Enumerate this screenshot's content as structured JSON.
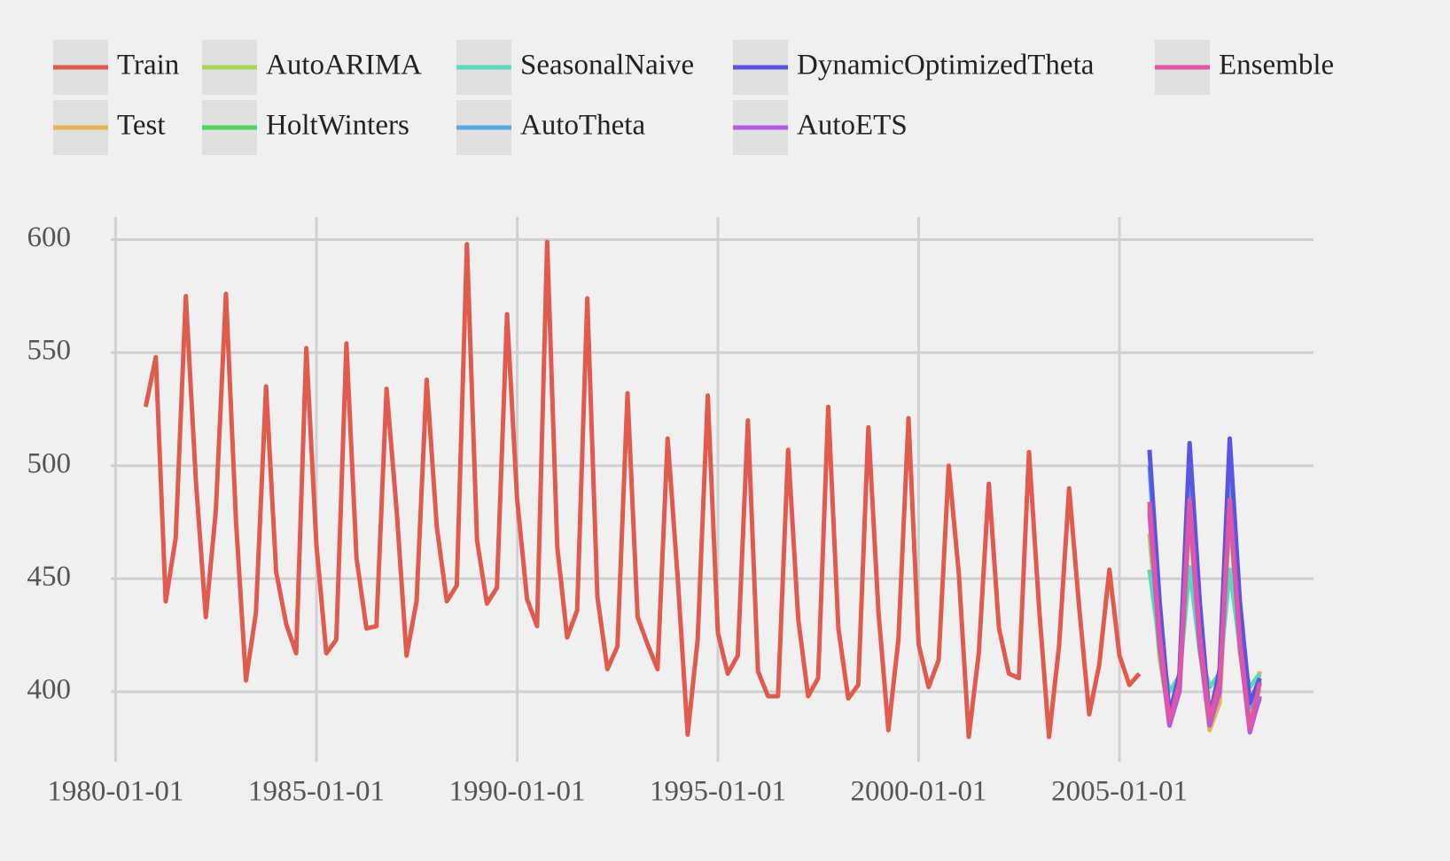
{
  "chart_data": {
    "type": "line",
    "xlim": [
      "1979-05-01",
      "2009-11-01"
    ],
    "ylim": [
      369,
      610
    ],
    "xticks": [
      "1980-01-01",
      "1985-01-01",
      "1990-01-01",
      "1995-01-01",
      "2000-01-01",
      "2005-01-01"
    ],
    "yticks": [
      400,
      450,
      500,
      550,
      600
    ],
    "grid": true,
    "legend": "top",
    "series": [
      {
        "name": "Train",
        "color": "#e05a4f",
        "x": [
          "1980-10-01",
          "1981-01-01",
          "1981-04-01",
          "1981-07-01",
          "1981-10-01",
          "1982-01-01",
          "1982-04-01",
          "1982-07-01",
          "1982-10-01",
          "1983-01-01",
          "1983-04-01",
          "1983-07-01",
          "1983-10-01",
          "1984-01-01",
          "1984-04-01",
          "1984-07-01",
          "1984-10-01",
          "1985-01-01",
          "1985-04-01",
          "1985-07-01",
          "1985-10-01",
          "1986-01-01",
          "1986-04-01",
          "1986-07-01",
          "1986-10-01",
          "1987-01-01",
          "1987-04-01",
          "1987-07-01",
          "1987-10-01",
          "1988-01-01",
          "1988-04-01",
          "1988-07-01",
          "1988-10-01",
          "1989-01-01",
          "1989-04-01",
          "1989-07-01",
          "1989-10-01",
          "1990-01-01",
          "1990-04-01",
          "1990-07-01",
          "1990-10-01",
          "1991-01-01",
          "1991-04-01",
          "1991-07-01",
          "1991-10-01",
          "1992-01-01",
          "1992-04-01",
          "1992-07-01",
          "1992-10-01",
          "1993-01-01",
          "1993-04-01",
          "1993-07-01",
          "1993-10-01",
          "1994-01-01",
          "1994-04-01",
          "1994-07-01",
          "1994-10-01",
          "1995-01-01",
          "1995-04-01",
          "1995-07-01",
          "1995-10-01",
          "1996-01-01",
          "1996-04-01",
          "1996-07-01",
          "1996-10-01",
          "1997-01-01",
          "1997-04-01",
          "1997-07-01",
          "1997-10-01",
          "1998-01-01",
          "1998-04-01",
          "1998-07-01",
          "1998-10-01",
          "1999-01-01",
          "1999-04-01",
          "1999-07-01",
          "1999-10-01",
          "2000-01-01",
          "2000-04-01",
          "2000-07-01",
          "2000-10-01",
          "2001-01-01",
          "2001-04-01",
          "2001-07-01",
          "2001-10-01",
          "2002-01-01",
          "2002-04-01",
          "2002-07-01",
          "2002-10-01",
          "2003-01-01",
          "2003-04-01",
          "2003-07-01",
          "2003-10-01",
          "2004-01-01",
          "2004-04-01",
          "2004-07-01",
          "2004-10-01",
          "2005-01-01",
          "2005-04-01",
          "2005-07-01"
        ],
        "values": [
          526,
          548,
          440,
          468,
          575,
          493,
          433,
          480,
          576,
          475,
          405,
          435,
          535,
          453,
          430,
          417,
          552,
          465,
          417,
          423,
          554,
          459,
          428,
          429,
          534,
          480,
          416,
          440,
          538,
          473,
          440,
          447,
          598,
          467,
          439,
          446,
          567,
          485,
          441,
          429,
          599,
          464,
          424,
          436,
          574,
          442,
          410,
          420,
          532,
          433,
          421,
          410,
          512,
          450,
          381,
          423,
          531,
          426,
          408,
          416,
          520,
          409,
          398,
          398,
          507,
          432,
          398,
          406,
          526,
          428,
          397,
          403,
          517,
          435,
          383,
          423,
          521,
          421,
          402,
          414,
          500,
          452,
          380,
          417,
          492,
          428,
          408,
          406,
          506,
          437,
          380,
          420,
          490,
          437,
          390,
          412,
          454,
          416,
          403,
          408
        ]
      },
      {
        "name": "Test",
        "color": "#e5b74f",
        "x": [
          "2005-10-01",
          "2006-01-01",
          "2006-04-01",
          "2006-07-01",
          "2006-10-01",
          "2007-01-01",
          "2007-04-01",
          "2007-07-01",
          "2007-10-01",
          "2008-01-01",
          "2008-04-01",
          "2008-07-01"
        ],
        "values": [
          478,
          418,
          386,
          400,
          478,
          420,
          383,
          395,
          480,
          418,
          387,
          409
        ]
      },
      {
        "name": "AutoARIMA",
        "color": "#a6d65a",
        "x": [
          "2005-10-01",
          "2006-01-01",
          "2006-04-01",
          "2006-07-01",
          "2006-10-01",
          "2007-01-01",
          "2007-04-01",
          "2007-07-01",
          "2007-10-01",
          "2008-01-01",
          "2008-04-01",
          "2008-07-01"
        ],
        "values": [
          470,
          415,
          388,
          403,
          478,
          418,
          390,
          404,
          478,
          418,
          390,
          401
        ]
      },
      {
        "name": "HoltWinters",
        "color": "#4fd65e",
        "x": [
          "2005-10-01",
          "2006-01-01",
          "2006-04-01",
          "2006-07-01",
          "2006-10-01",
          "2007-01-01",
          "2007-04-01",
          "2007-07-01",
          "2007-10-01",
          "2008-01-01",
          "2008-04-01",
          "2008-07-01"
        ],
        "values": [
          482,
          420,
          385,
          403,
          490,
          423,
          386,
          404,
          490,
          422,
          384,
          397
        ]
      },
      {
        "name": "SeasonalNaive",
        "color": "#5ad9b8",
        "x": [
          "2005-10-01",
          "2006-01-01",
          "2006-04-01",
          "2006-07-01",
          "2006-10-01",
          "2007-01-01",
          "2007-04-01",
          "2007-07-01",
          "2007-10-01",
          "2008-01-01",
          "2008-04-01",
          "2008-07-01"
        ],
        "values": [
          454,
          420,
          400,
          407,
          455,
          418,
          402,
          408,
          454,
          420,
          402,
          408
        ]
      },
      {
        "name": "AutoTheta",
        "color": "#5aa9e0",
        "x": [
          "2005-10-01",
          "2006-01-01",
          "2006-04-01",
          "2006-07-01",
          "2006-10-01",
          "2007-01-01",
          "2007-04-01",
          "2007-07-01",
          "2007-10-01",
          "2008-01-01",
          "2008-04-01",
          "2008-07-01"
        ],
        "values": [
          500,
          430,
          390,
          408,
          505,
          432,
          390,
          408,
          508,
          432,
          393,
          405
        ]
      },
      {
        "name": "DynamicOptimizedTheta",
        "color": "#5a55e0",
        "x": [
          "2005-10-01",
          "2006-01-01",
          "2006-04-01",
          "2006-07-01",
          "2006-10-01",
          "2007-01-01",
          "2007-04-01",
          "2007-07-01",
          "2007-10-01",
          "2008-01-01",
          "2008-04-01",
          "2008-07-01"
        ],
        "values": [
          507,
          440,
          390,
          408,
          510,
          440,
          388,
          410,
          512,
          440,
          395,
          406
        ]
      },
      {
        "name": "AutoETS",
        "color": "#b45ae0",
        "x": [
          "2005-10-01",
          "2006-01-01",
          "2006-04-01",
          "2006-07-01",
          "2006-10-01",
          "2007-01-01",
          "2007-04-01",
          "2007-07-01",
          "2007-10-01",
          "2008-01-01",
          "2008-04-01",
          "2008-07-01"
        ],
        "values": [
          480,
          420,
          385,
          400,
          482,
          420,
          385,
          400,
          483,
          420,
          382,
          398
        ]
      },
      {
        "name": "Ensemble",
        "color": "#e055a5",
        "x": [
          "2005-10-01",
          "2006-01-01",
          "2006-04-01",
          "2006-07-01",
          "2006-10-01",
          "2007-01-01",
          "2007-04-01",
          "2007-07-01",
          "2007-10-01",
          "2008-01-01",
          "2008-04-01",
          "2008-07-01"
        ],
        "values": [
          484,
          425,
          387,
          404,
          485,
          425,
          388,
          404,
          485,
          423,
          384,
          404
        ]
      }
    ]
  }
}
